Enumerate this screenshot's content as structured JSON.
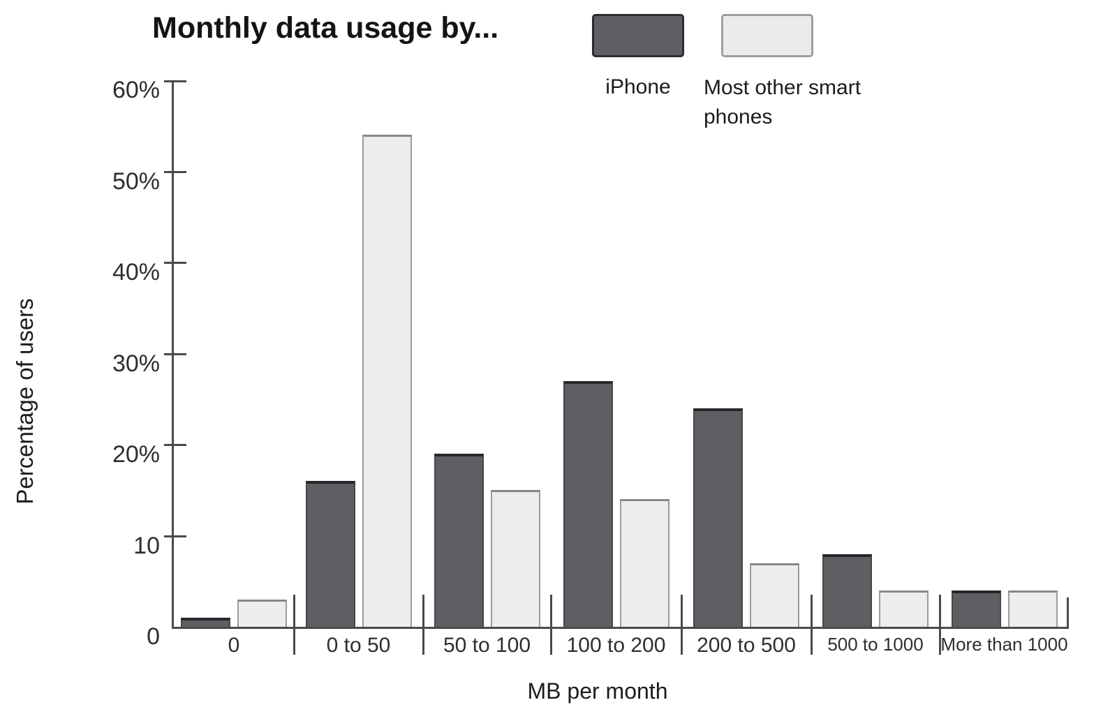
{
  "title": "Monthly data usage by...",
  "legend": {
    "iphone_label": "iPhone",
    "other_label": "Most other smart phones"
  },
  "axes": {
    "y_title": "Percentage of users",
    "x_title": "MB per month",
    "y_tick_labels": [
      "60%",
      "50%",
      "40%",
      "30%",
      "20%",
      "10",
      "0"
    ]
  },
  "colors": {
    "iphone_fill": "#5e5e63",
    "iphone_border": "#2c2c2f",
    "other_fill": "#ededef",
    "other_border": "#9b9b9b",
    "axis": "#4a4a4a"
  },
  "chart_data": {
    "type": "bar",
    "title": "Monthly data usage by...",
    "xlabel": "MB per month",
    "ylabel": "Percentage of users",
    "categories": [
      "0",
      "0 to 50",
      "50 to 100",
      "100 to 200",
      "200 to 500",
      "500 to 1000",
      "More than 1000"
    ],
    "series": [
      {
        "name": "iPhone",
        "color": "#5e5e63",
        "values": [
          1,
          16,
          19,
          27,
          24,
          8,
          4
        ]
      },
      {
        "name": "Most other smart phones",
        "color": "#ededef",
        "values": [
          3,
          54,
          15,
          14,
          7,
          4,
          4
        ]
      }
    ],
    "ylim": [
      0,
      60
    ],
    "y_ticks": [
      0,
      10,
      20,
      30,
      40,
      50,
      60
    ],
    "grid": false,
    "legend_position": "top-right"
  }
}
